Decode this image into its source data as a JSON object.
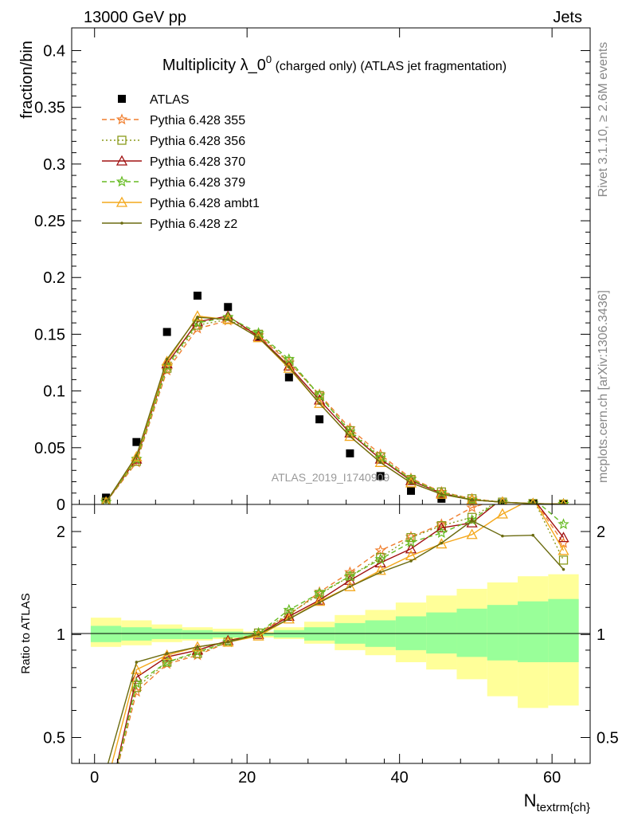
{
  "header": {
    "left": "13000 GeV pp",
    "right": "Jets"
  },
  "side_labels": {
    "top": "Rivet 3.1.10, ≥ 2.6M events",
    "bottom": "mcplots.cern.ch [arXiv:1306.3436]"
  },
  "watermark": "ATLAS_2019_I1740909",
  "chart_data": [
    {
      "type": "scatter",
      "panel": "main",
      "title_main": "Multiplicity λ_0",
      "title_sup": "0",
      "title_rest": " (charged only) (ATLAS jet fragmentation)",
      "ylabel": "fraction/bin",
      "xlim": [
        -3,
        65
      ],
      "ylim": [
        0,
        0.42
      ],
      "y_ticks": [
        0,
        0.05,
        0.1,
        0.15,
        0.2,
        0.25,
        0.3,
        0.35,
        0.4
      ],
      "y_tick_labels": [
        "0",
        "0.05",
        "0.1",
        "0.15",
        "0.2",
        "0.25",
        "0.3",
        "0.35",
        "0.4"
      ],
      "x": [
        1.5,
        5.5,
        9.5,
        13.5,
        17.5,
        21.5,
        25.5,
        29.5,
        33.5,
        37.5,
        41.5,
        45.5,
        49.5,
        53.5,
        57.5,
        61.5
      ],
      "legend_position": "top-left",
      "series": [
        {
          "name": "ATLAS",
          "color": "#000000",
          "marker": "square",
          "style": "none",
          "values": [
            0.006,
            0.055,
            0.152,
            0.184,
            0.174,
            0.148,
            0.112,
            0.075,
            0.045,
            0.025,
            0.012,
            0.005,
            0.002,
            0.001,
            0.0003,
            0.0001
          ]
        },
        {
          "name": "Pythia 6.428 355",
          "color": "#f07f2f",
          "marker": "star",
          "style": "dashed",
          "values": [
            0.002,
            0.037,
            0.118,
            0.155,
            0.162,
            0.149,
            0.125,
            0.097,
            0.067,
            0.044,
            0.023,
            0.011,
            0.005,
            0.002,
            0.0008,
            0.0003
          ]
        },
        {
          "name": "Pythia 6.428 356",
          "color": "#8a9a1a",
          "marker": "open-square",
          "style": "dotted",
          "values": [
            0.002,
            0.038,
            0.12,
            0.158,
            0.163,
            0.15,
            0.126,
            0.096,
            0.065,
            0.042,
            0.022,
            0.011,
            0.005,
            0.002,
            0.0008,
            0.0003
          ]
        },
        {
          "name": "Pythia 6.428 370",
          "color": "#a01010",
          "marker": "open-triangle",
          "style": "solid",
          "values": [
            0.002,
            0.04,
            0.124,
            0.161,
            0.166,
            0.148,
            0.122,
            0.092,
            0.063,
            0.04,
            0.021,
            0.01,
            0.004,
            0.002,
            0.0007,
            0.0003
          ]
        },
        {
          "name": "Pythia 6.428 379",
          "color": "#66bb22",
          "marker": "star",
          "style": "dashed",
          "values": [
            0.002,
            0.04,
            0.122,
            0.16,
            0.165,
            0.151,
            0.128,
            0.096,
            0.064,
            0.041,
            0.022,
            0.01,
            0.004,
            0.002,
            0.0007,
            0.0003
          ]
        },
        {
          "name": "Pythia 6.428 ambt1",
          "color": "#f4a81c",
          "marker": "open-triangle",
          "style": "solid",
          "values": [
            0.002,
            0.042,
            0.126,
            0.166,
            0.163,
            0.147,
            0.12,
            0.089,
            0.06,
            0.037,
            0.019,
            0.009,
            0.004,
            0.002,
            0.0007,
            0.0002
          ]
        },
        {
          "name": "Pythia 6.428 z2",
          "color": "#6b6b10",
          "marker": "dot",
          "style": "solid",
          "values": [
            0.002,
            0.043,
            0.128,
            0.165,
            0.163,
            0.147,
            0.121,
            0.089,
            0.06,
            0.037,
            0.019,
            0.009,
            0.004,
            0.002,
            0.0006,
            0.0002
          ]
        }
      ]
    },
    {
      "type": "line",
      "panel": "ratio",
      "ylabel": "Ratio to ATLAS",
      "xlabel_main": "N",
      "xlabel_sub": "textrm{ch}",
      "ylog": true,
      "ylim": [
        0.42,
        2.4
      ],
      "y_ticks": [
        0.5,
        1,
        2
      ],
      "y_tick_labels": [
        "0.5",
        "1",
        "2"
      ],
      "xlim": [
        -3,
        65
      ],
      "x_ticks": [
        0,
        20,
        40,
        60
      ],
      "x_tick_labels": [
        "0",
        "20",
        "40",
        "60"
      ],
      "bin_edges": [
        -0.5,
        3.5,
        7.5,
        11.5,
        15.5,
        19.5,
        23.5,
        27.5,
        31.5,
        35.5,
        39.5,
        43.5,
        47.5,
        51.5,
        55.5,
        59.5,
        63.5
      ],
      "band_inner": [
        [
          0.95,
          1.06
        ],
        [
          0.96,
          1.05
        ],
        [
          0.97,
          1.04
        ],
        [
          0.97,
          1.03
        ],
        [
          0.98,
          1.02
        ],
        [
          0.99,
          1.01
        ],
        [
          0.98,
          1.03
        ],
        [
          0.96,
          1.05
        ],
        [
          0.94,
          1.08
        ],
        [
          0.92,
          1.1
        ],
        [
          0.9,
          1.13
        ],
        [
          0.88,
          1.16
        ],
        [
          0.86,
          1.19
        ],
        [
          0.84,
          1.22
        ],
        [
          0.83,
          1.25
        ],
        [
          0.83,
          1.27
        ]
      ],
      "band_outer": [
        [
          0.92,
          1.12
        ],
        [
          0.93,
          1.1
        ],
        [
          0.95,
          1.07
        ],
        [
          0.96,
          1.05
        ],
        [
          0.97,
          1.04
        ],
        [
          0.98,
          1.02
        ],
        [
          0.97,
          1.05
        ],
        [
          0.94,
          1.09
        ],
        [
          0.9,
          1.14
        ],
        [
          0.87,
          1.18
        ],
        [
          0.83,
          1.24
        ],
        [
          0.79,
          1.3
        ],
        [
          0.74,
          1.36
        ],
        [
          0.66,
          1.42
        ],
        [
          0.61,
          1.48
        ],
        [
          0.62,
          1.5
        ]
      ],
      "x": [
        1.5,
        5.5,
        9.5,
        13.5,
        17.5,
        21.5,
        25.5,
        29.5,
        33.5,
        37.5,
        41.5,
        45.5,
        49.5,
        53.5,
        57.5,
        61.5
      ],
      "series": [
        {
          "name": "Pythia 6.428 355",
          "color": "#f07f2f",
          "marker": "star",
          "style": "dashed",
          "values": [
            0.3,
            0.68,
            0.82,
            0.87,
            0.95,
            1.01,
            1.14,
            1.33,
            1.52,
            1.76,
            1.93,
            2.1,
            2.35,
            2.5,
            2.5,
            1.85
          ]
        },
        {
          "name": "Pythia 6.428 356",
          "color": "#8a9a1a",
          "marker": "open-square",
          "style": "dotted",
          "values": [
            0.3,
            0.7,
            0.83,
            0.88,
            0.95,
            1.01,
            1.15,
            1.31,
            1.48,
            1.68,
            1.92,
            2.08,
            2.2,
            2.5,
            2.5,
            1.65
          ]
        },
        {
          "name": "Pythia 6.428 370",
          "color": "#a01010",
          "marker": "open-triangle",
          "style": "solid",
          "values": [
            0.3,
            0.75,
            0.86,
            0.9,
            0.96,
            1.0,
            1.13,
            1.26,
            1.44,
            1.62,
            1.78,
            2.05,
            2.12,
            2.5,
            2.5,
            1.92
          ]
        },
        {
          "name": "Pythia 6.428 379",
          "color": "#66bb22",
          "marker": "star",
          "style": "dashed",
          "values": [
            0.3,
            0.72,
            0.83,
            0.89,
            0.95,
            1.01,
            1.18,
            1.32,
            1.48,
            1.66,
            1.86,
            1.98,
            2.16,
            2.5,
            2.5,
            2.1
          ]
        },
        {
          "name": "Pythia 6.428 ambt1",
          "color": "#f4a81c",
          "marker": "open-triangle",
          "style": "solid",
          "values": [
            0.36,
            0.79,
            0.87,
            0.92,
            0.95,
            0.99,
            1.11,
            1.25,
            1.38,
            1.54,
            1.7,
            1.84,
            1.96,
            2.25,
            2.5,
            1.76
          ]
        },
        {
          "name": "Pythia 6.428 z2",
          "color": "#6b6b10",
          "marker": "dot",
          "style": "solid",
          "values": [
            0.4,
            0.83,
            0.88,
            0.92,
            0.95,
            1.0,
            1.11,
            1.24,
            1.38,
            1.52,
            1.64,
            1.85,
            2.15,
            1.94,
            1.95,
            1.55
          ]
        }
      ]
    }
  ]
}
